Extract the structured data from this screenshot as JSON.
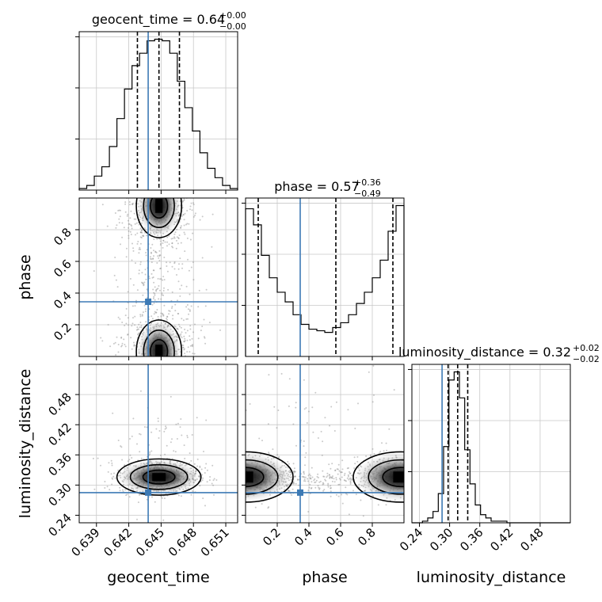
{
  "chart_data": {
    "type": "corner",
    "parameters": [
      "geocent_time",
      "phase",
      "luminosity_distance"
    ],
    "titles": [
      {
        "param": "geocent_time",
        "name": "geocent_time",
        "median": "0.64",
        "plus": "+0.00",
        "minus": "−0.00"
      },
      {
        "param": "phase",
        "name": "phase",
        "median": "0.57",
        "plus": "+0.36",
        "minus": "−0.49"
      },
      {
        "param": "luminosity_distance",
        "name": "luminosity_distance",
        "median": "0.32",
        "plus": "+0.02",
        "minus": "−0.02"
      }
    ],
    "axes": {
      "geocent_time": {
        "range": [
          0.6374,
          0.6521
        ],
        "ticks": [
          0.639,
          0.642,
          0.645,
          0.648,
          0.651
        ],
        "tick_labels": [
          "0.639",
          "0.642",
          "0.645",
          "0.648",
          "0.651"
        ]
      },
      "phase": {
        "range": [
          0.0,
          1.0
        ],
        "ticks": [
          0.2,
          0.4,
          0.6,
          0.8
        ],
        "tick_labels": [
          "0.2",
          "0.4",
          "0.6",
          "0.8"
        ]
      },
      "luminosity_distance": {
        "range": [
          0.225,
          0.54
        ],
        "ticks": [
          0.24,
          0.3,
          0.36,
          0.42,
          0.48
        ],
        "tick_labels": [
          "0.24",
          "0.30",
          "0.36",
          "0.42",
          "0.48"
        ]
      }
    },
    "truth": {
      "geocent_time": 0.6438,
      "phase": 0.345,
      "luminosity_distance": 0.285
    },
    "quantiles": {
      "geocent_time": [
        0.6428,
        0.6448,
        0.6467
      ],
      "phase": [
        0.08,
        0.57,
        0.93
      ],
      "luminosity_distance": [
        0.297,
        0.316,
        0.336
      ]
    },
    "histograms": {
      "geocent_time": {
        "edges": [
          0.6374,
          0.6381,
          0.6388,
          0.6395,
          0.6402,
          0.6409,
          0.6416,
          0.6423,
          0.643,
          0.6437,
          0.6444,
          0.6451,
          0.6458,
          0.6465,
          0.6472,
          0.6479,
          0.6486,
          0.6493,
          0.65,
          0.6507,
          0.6514,
          0.6521
        ],
        "counts": [
          1,
          3,
          9,
          15,
          28,
          46,
          65,
          80,
          88,
          96,
          97,
          96,
          88,
          70,
          53,
          38,
          24,
          14,
          8,
          3,
          1
        ]
      },
      "phase": {
        "edges": [
          0.0,
          0.05,
          0.1,
          0.15,
          0.2,
          0.25,
          0.3,
          0.35,
          0.4,
          0.45,
          0.5,
          0.55,
          0.6,
          0.65,
          0.7,
          0.75,
          0.8,
          0.85,
          0.9,
          0.95,
          1.0
        ],
        "counts": [
          92,
          82,
          63,
          49,
          40,
          34,
          26,
          20,
          17,
          16,
          15,
          18,
          21,
          26,
          33,
          40,
          49,
          60,
          78,
          94
        ]
      },
      "luminosity_distance": {
        "edges": [
          0.225,
          0.2355,
          0.246,
          0.2565,
          0.267,
          0.2775,
          0.288,
          0.2985,
          0.309,
          0.3195,
          0.33,
          0.3405,
          0.351,
          0.3615,
          0.372,
          0.3825,
          0.393,
          0.4035,
          0.414,
          0.4245,
          0.435,
          0.4455,
          0.456,
          0.4665,
          0.477,
          0.4875,
          0.498,
          0.5085,
          0.519,
          0.5295,
          0.54
        ],
        "counts": [
          0,
          0,
          1,
          3,
          7,
          18,
          47,
          88,
          93,
          77,
          45,
          24,
          11,
          5,
          3,
          1,
          1,
          1,
          0,
          0,
          0,
          0,
          0,
          0,
          0,
          0,
          0,
          0,
          0,
          0
        ]
      }
    },
    "grid": true
  }
}
